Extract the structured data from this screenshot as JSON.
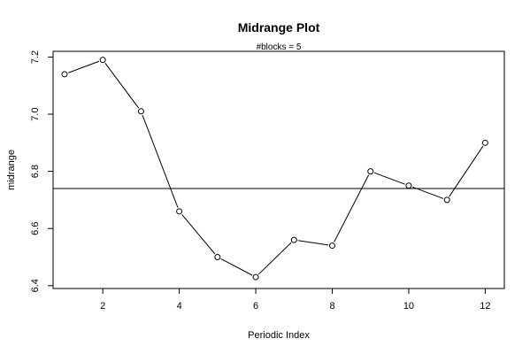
{
  "chart_data": {
    "type": "line",
    "title": "Midrange Plot",
    "subtitle": "#blocks =  5",
    "xlabel": "Periodic Index",
    "ylabel": "midrange",
    "xlim": [
      0.7,
      12.5
    ],
    "ylim": [
      6.39,
      7.22
    ],
    "x_ticks": [
      2,
      4,
      6,
      8,
      10,
      12
    ],
    "y_ticks": [
      6.4,
      6.6,
      6.8,
      7.0,
      7.2
    ],
    "y_tick_labels": [
      "6.4",
      "6.6",
      "6.8",
      "7.0",
      "7.2"
    ],
    "x": [
      1,
      2,
      3,
      4,
      5,
      6,
      7,
      8,
      9,
      10,
      11,
      12
    ],
    "y": [
      7.14,
      7.19,
      7.01,
      6.66,
      6.5,
      6.43,
      6.56,
      6.54,
      6.8,
      6.75,
      6.7,
      6.9
    ],
    "reference_line": 6.74,
    "grid": false,
    "marker": "open-circle",
    "line_color": "#000000"
  }
}
